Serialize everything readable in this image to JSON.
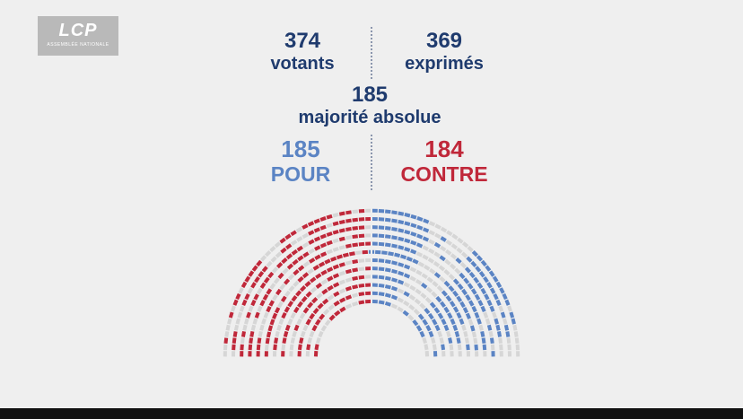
{
  "logo": {
    "main": "LCP",
    "sub": "ASSEMBLÉE NATIONALE"
  },
  "votants": {
    "value": "374",
    "label": "votants"
  },
  "exprimes": {
    "value": "369",
    "label": "exprimés"
  },
  "majorite": {
    "value": "185",
    "label": "majorité absolue"
  },
  "pour": {
    "value": "185",
    "label": "POUR"
  },
  "contre": {
    "value": "184",
    "label": "CONTRE"
  },
  "colors": {
    "pour": "#5b84c4",
    "contre": "#c0283a",
    "absent": "#d6d6d6",
    "text": "#1f3b6e"
  }
}
